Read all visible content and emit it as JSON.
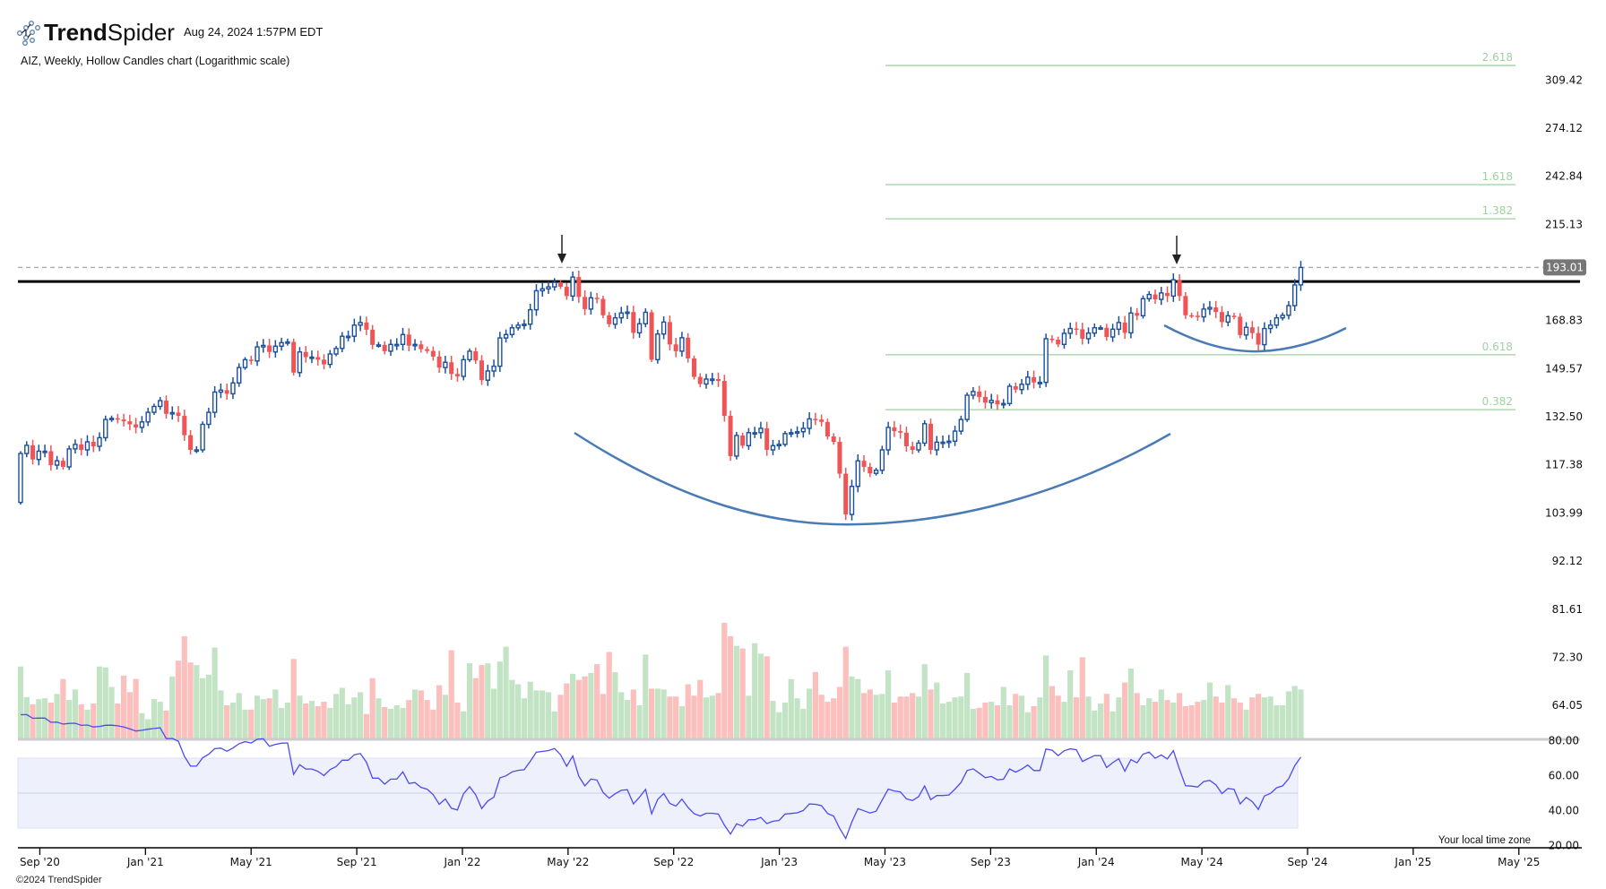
{
  "header": {
    "brand_bold": "Trend",
    "brand_light": "Spider",
    "timestamp": "Aug 24, 2024 1:57PM EDT",
    "chart_title": "AIZ, Weekly, Hollow Candles chart (Logarithmic scale)",
    "timezone_note": "Your local time zone",
    "copyright": "©2024 TrendSpider"
  },
  "colors": {
    "up_candle": "#1a4f9c",
    "down_candle": "#f05454",
    "volume_up": "#c3e3c5",
    "volume_down": "#fbbfbd",
    "fib_line": "#9fd19f",
    "rsi_line": "#4b4bf0",
    "rsi_band": "#eef0fb",
    "arc": "#4a7bb5",
    "resistance": "#000000",
    "price_tag": "#777777"
  },
  "chart_data": {
    "type": "candlestick",
    "symbol": "AIZ",
    "interval": "Weekly",
    "scale": "log",
    "price_axis_ticks": [
      "309.42",
      "274.12",
      "242.84",
      "215.13",
      "168.83",
      "149.57",
      "132.50",
      "117.38",
      "103.99",
      "92.12",
      "81.61",
      "72.30",
      "64.05"
    ],
    "current_price": "193.01",
    "resistance_level": 186.3,
    "fib_levels": [
      {
        "label": "2.618",
        "price": 321.0
      },
      {
        "label": "1.618",
        "price": 237.8
      },
      {
        "label": "1.382",
        "price": 218.2
      },
      {
        "label": "0.618",
        "price": 154.9
      },
      {
        "label": "0.382",
        "price": 134.9
      }
    ],
    "x_axis_ticks": [
      "Sep '20",
      "Jan '21",
      "May '21",
      "Sep '21",
      "Jan '22",
      "May '22",
      "Sep '22",
      "Jan '23",
      "May '23",
      "Sep '23",
      "Jan '24",
      "May '24",
      "Sep '24",
      "Jan '25",
      "May '25"
    ],
    "first_open": 106.8,
    "closes": [
      120.8,
      123.3,
      119,
      121.5,
      121.5,
      117.3,
      118.6,
      116.8,
      122.2,
      123.6,
      121.9,
      124.4,
      123,
      125.7,
      131.6,
      132,
      131.6,
      131,
      130,
      129,
      130.8,
      134,
      136,
      138,
      133.5,
      133.9,
      132.8,
      126.5,
      121.9,
      121.9,
      130,
      134,
      141,
      141.7,
      140.4,
      144.3,
      150,
      153,
      152.5,
      158,
      158.6,
      156,
      158.3,
      159.7,
      160,
      148.1,
      156,
      154,
      154,
      153,
      151.2,
      155.2,
      157.4,
      162.3,
      162.3,
      166.9,
      168,
      165,
      158.8,
      158.8,
      156.3,
      159,
      159,
      163,
      158.5,
      159,
      157.1,
      156.4,
      154.2,
      150,
      152,
      147.6,
      146.7,
      153,
      156.3,
      152.7,
      145.3,
      148.7,
      150.5,
      161.6,
      163,
      165.8,
      166.9,
      167.3,
      173.5,
      182,
      182.9,
      183.8,
      185.9,
      183.8,
      179.6,
      188.4,
      179.2,
      173.8,
      178.8,
      178.3,
      171.1,
      167.3,
      170,
      172.1,
      172.5,
      163.7,
      167.5,
      172.4,
      153,
      163.2,
      168.2,
      159,
      156.3,
      161.7,
      153.5,
      146.5,
      143.9,
      145.7,
      145.7,
      145,
      132.8,
      120,
      126.4,
      123.2,
      127.3,
      127.3,
      128.7,
      121.9,
      123.2,
      123.6,
      127,
      127.3,
      127.6,
      128.7,
      131.8,
      131.6,
      130.8,
      126.1,
      124.4,
      114.8,
      103.6,
      111.2,
      118.6,
      116.8,
      114.9,
      115.8,
      121.9,
      129,
      127.8,
      127.3,
      123,
      121.9,
      124,
      130.2,
      121.9,
      124.3,
      124.3,
      124.6,
      127.8,
      131.6,
      139.9,
      141.2,
      139.3,
      137.3,
      138.1,
      136.7,
      137,
      143.1,
      141.9,
      143.8,
      146.4,
      144.5,
      144.5,
      161.3,
      160.9,
      159,
      163.5,
      165.5,
      165.2,
      161.3,
      163.6,
      165.8,
      165.8,
      162,
      165.2,
      168,
      163.7,
      172.1,
      170.9,
      178.4,
      180.3,
      178.1,
      181,
      179.6,
      187.1,
      179.6,
      171.1,
      170.9,
      170.4,
      173.8,
      174.5,
      172.5,
      168.2,
      170.9,
      170.5,
      162.8,
      166,
      163.6,
      158.9,
      165.5,
      166.9,
      170,
      171.1,
      175.3,
      184.7,
      193.01
    ],
    "volume_relative": [
      250,
      145,
      120,
      138,
      141,
      126,
      156,
      207,
      135,
      171,
      120,
      102,
      123,
      250,
      247,
      180,
      123,
      219,
      162,
      207,
      90,
      69,
      138,
      129,
      99,
      216,
      270,
      354,
      264,
      255,
      210,
      222,
      315,
      168,
      117,
      126,
      159,
      102,
      102,
      150,
      138,
      141,
      171,
      108,
      126,
      276,
      150,
      123,
      132,
      114,
      129,
      108,
      156,
      177,
      120,
      144,
      162,
      87,
      210,
      141,
      111,
      105,
      117,
      108,
      135,
      171,
      168,
      135,
      102,
      186,
      153,
      306,
      126,
      96,
      261,
      210,
      255,
      261,
      174,
      267,
      318,
      204,
      189,
      141,
      198,
      168,
      168,
      162,
      96,
      153,
      192,
      225,
      204,
      216,
      228,
      258,
      156,
      300,
      231,
      162,
      135,
      171,
      117,
      291,
      174,
      174,
      171,
      147,
      147,
      114,
      189,
      150,
      204,
      144,
      150,
      159,
      400,
      354,
      321,
      312,
      150,
      330,
      294,
      285,
      132,
      93,
      126,
      207,
      141,
      105,
      174,
      231,
      153,
      129,
      141,
      180,
      318,
      216,
      207,
      159,
      171,
      153,
      156,
      237,
      126,
      147,
      147,
      159,
      147,
      258,
      171,
      195,
      123,
      129,
      144,
      147,
      228,
      105,
      108,
      126,
      129,
      117,
      180,
      117,
      156,
      150,
      93,
      114,
      144,
      288,
      183,
      150,
      129,
      237,
      144,
      282,
      147,
      99,
      123,
      156,
      96,
      144,
      195,
      243,
      159,
      117,
      141,
      129,
      171,
      135,
      126,
      159,
      114,
      117,
      129,
      135,
      195,
      147,
      126,
      186,
      141,
      126,
      102,
      144,
      156,
      144,
      147,
      117,
      117,
      165,
      183,
      171
    ],
    "rsi": {
      "period": 14,
      "axis_ticks": [
        "80.00",
        "60.00",
        "40.00",
        "20.00"
      ],
      "band": [
        30,
        70
      ]
    }
  }
}
